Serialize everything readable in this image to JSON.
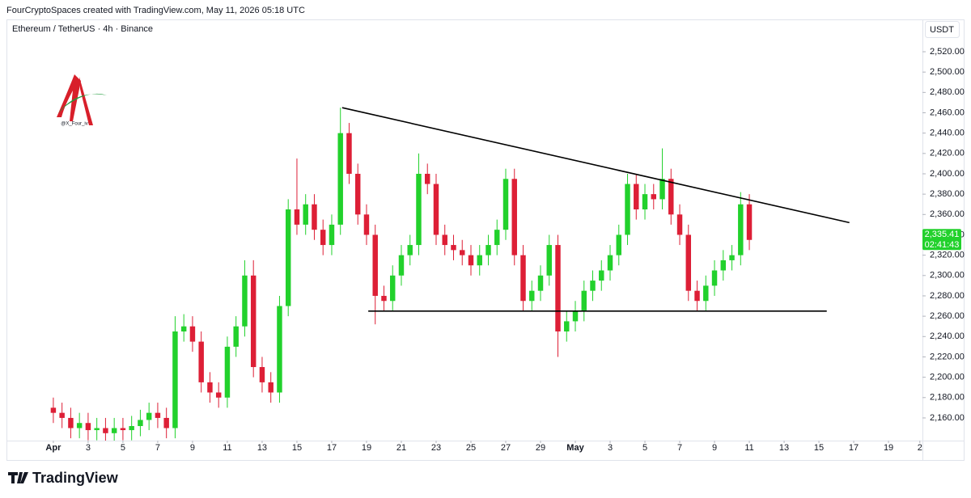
{
  "header": {
    "credit": "FourCryptoSpaces created with TradingView.com, May 11, 2026 05:18 UTC"
  },
  "footer": {
    "brand": "TradingView"
  },
  "watermark": {
    "handle": "@X_Four_iv"
  },
  "chart_data": {
    "type": "candlestick",
    "title": "Ethereum / TetherUS · 4h · Binance",
    "currency": "USDT",
    "up_color": "#22d12c",
    "down_color": "#dd1f36",
    "open": [
      2170,
      2165,
      2160,
      2150,
      2155,
      2148,
      2150,
      2145,
      2150,
      2148,
      2152,
      2158,
      2165,
      2160,
      2150,
      2245,
      2250,
      2235,
      2195,
      2185,
      2180,
      2230,
      2250,
      2300,
      2210,
      2195,
      2185,
      2270,
      2365,
      2350,
      2370,
      2345,
      2330,
      2350,
      2440,
      2400,
      2360,
      2340,
      2280,
      2275,
      2300,
      2320,
      2330,
      2400,
      2390,
      2340,
      2330,
      2325,
      2320,
      2310,
      2320,
      2330,
      2345,
      2395,
      2320,
      2275,
      2285,
      2300,
      2330,
      2245,
      2255,
      2265,
      2285,
      2295,
      2305,
      2320,
      2340,
      2390,
      2365,
      2380,
      2375,
      2395,
      2360,
      2340,
      2285,
      2275,
      2290,
      2305,
      2315,
      2320,
      2370
    ],
    "high": [
      2180,
      2175,
      2170,
      2165,
      2165,
      2160,
      2160,
      2160,
      2160,
      2162,
      2168,
      2175,
      2175,
      2170,
      2260,
      2262,
      2260,
      2245,
      2205,
      2195,
      2240,
      2260,
      2315,
      2315,
      2220,
      2205,
      2280,
      2375,
      2415,
      2380,
      2380,
      2355,
      2360,
      2465,
      2450,
      2410,
      2370,
      2350,
      2290,
      2310,
      2330,
      2340,
      2420,
      2410,
      2400,
      2350,
      2340,
      2335,
      2330,
      2330,
      2340,
      2355,
      2405,
      2405,
      2330,
      2295,
      2310,
      2340,
      2340,
      2265,
      2275,
      2295,
      2305,
      2315,
      2330,
      2350,
      2400,
      2400,
      2390,
      2390,
      2425,
      2405,
      2370,
      2350,
      2295,
      2300,
      2315,
      2325,
      2330,
      2382,
      2380
    ],
    "low": [
      2155,
      2150,
      2140,
      2140,
      2138,
      2138,
      2135,
      2135,
      2138,
      2138,
      2142,
      2148,
      2150,
      2140,
      2140,
      2235,
      2225,
      2185,
      2175,
      2170,
      2170,
      2220,
      2240,
      2200,
      2185,
      2175,
      2175,
      2260,
      2340,
      2340,
      2335,
      2320,
      2320,
      2340,
      2390,
      2350,
      2330,
      2252,
      2265,
      2265,
      2290,
      2310,
      2320,
      2380,
      2330,
      2320,
      2315,
      2310,
      2300,
      2300,
      2310,
      2320,
      2335,
      2310,
      2265,
      2265,
      2275,
      2290,
      2220,
      2235,
      2245,
      2255,
      2275,
      2285,
      2295,
      2310,
      2330,
      2355,
      2355,
      2365,
      2365,
      2350,
      2330,
      2275,
      2265,
      2265,
      2280,
      2295,
      2305,
      2310,
      2325
    ],
    "close": [
      2165,
      2160,
      2150,
      2155,
      2148,
      2150,
      2145,
      2150,
      2148,
      2152,
      2158,
      2165,
      2160,
      2150,
      2245,
      2250,
      2235,
      2195,
      2185,
      2180,
      2230,
      2250,
      2300,
      2210,
      2195,
      2185,
      2270,
      2365,
      2350,
      2370,
      2345,
      2330,
      2350,
      2440,
      2400,
      2360,
      2340,
      2280,
      2275,
      2300,
      2320,
      2330,
      2400,
      2390,
      2340,
      2330,
      2325,
      2320,
      2310,
      2320,
      2330,
      2345,
      2395,
      2320,
      2275,
      2285,
      2300,
      2330,
      2245,
      2255,
      2265,
      2285,
      2295,
      2305,
      2320,
      2340,
      2390,
      2365,
      2380,
      2375,
      2395,
      2360,
      2340,
      2285,
      2275,
      2290,
      2305,
      2315,
      2320,
      2370,
      2335
    ],
    "lines": [
      {
        "x": [
          33.2,
          91.5
        ],
        "y": [
          2465,
          2352
        ]
      },
      {
        "x": [
          36.2,
          88.9
        ],
        "y": [
          2265,
          2265
        ]
      }
    ],
    "last_price": {
      "value": 2335.41,
      "label": "2,335.41"
    },
    "countdown": "02:41:43",
    "xlim": [
      -5.2,
      99.9
    ],
    "xticks": [
      {
        "value": 0,
        "label": "Apr"
      },
      {
        "value": 4,
        "label": "3"
      },
      {
        "value": 8,
        "label": "5"
      },
      {
        "value": 12,
        "label": "7"
      },
      {
        "value": 16,
        "label": "9"
      },
      {
        "value": 20,
        "label": "11"
      },
      {
        "value": 24,
        "label": "13"
      },
      {
        "value": 28,
        "label": "15"
      },
      {
        "value": 32,
        "label": "17"
      },
      {
        "value": 36,
        "label": "19"
      },
      {
        "value": 40,
        "label": "21"
      },
      {
        "value": 44,
        "label": "23"
      },
      {
        "value": 48,
        "label": "25"
      },
      {
        "value": 52,
        "label": "27"
      },
      {
        "value": 56,
        "label": "29"
      },
      {
        "value": 60,
        "label": "May"
      },
      {
        "value": 64,
        "label": "3"
      },
      {
        "value": 68,
        "label": "5"
      },
      {
        "value": 72,
        "label": "7"
      },
      {
        "value": 76,
        "label": "9"
      },
      {
        "value": 80,
        "label": "11"
      },
      {
        "value": 84,
        "label": "13"
      },
      {
        "value": 88,
        "label": "15"
      },
      {
        "value": 92,
        "label": "17"
      },
      {
        "value": 96,
        "label": "19"
      },
      {
        "value": 99.6,
        "label": "2"
      }
    ],
    "ylim": [
      2137.7,
      2551
    ],
    "yticks": [
      {
        "value": 2160,
        "label": "2,160.00"
      },
      {
        "value": 2180,
        "label": "2,180.00"
      },
      {
        "value": 2200,
        "label": "2,200.00"
      },
      {
        "value": 2220,
        "label": "2,220.00"
      },
      {
        "value": 2240,
        "label": "2,240.00"
      },
      {
        "value": 2260,
        "label": "2,260.00"
      },
      {
        "value": 2280,
        "label": "2,280.00"
      },
      {
        "value": 2300,
        "label": "2,300.00"
      },
      {
        "value": 2320,
        "label": "2,320.00"
      },
      {
        "value": 2340,
        "label": "2,340.00"
      },
      {
        "value": 2360,
        "label": "2,360.00"
      },
      {
        "value": 2380,
        "label": "2,380.00"
      },
      {
        "value": 2400,
        "label": "2,400.00"
      },
      {
        "value": 2420,
        "label": "2,420.00"
      },
      {
        "value": 2440,
        "label": "2,440.00"
      },
      {
        "value": 2460,
        "label": "2,460.00"
      },
      {
        "value": 2480,
        "label": "2,480.00"
      },
      {
        "value": 2500,
        "label": "2,500.00"
      },
      {
        "value": 2520,
        "label": "2,520.00"
      }
    ],
    "grid": false
  }
}
